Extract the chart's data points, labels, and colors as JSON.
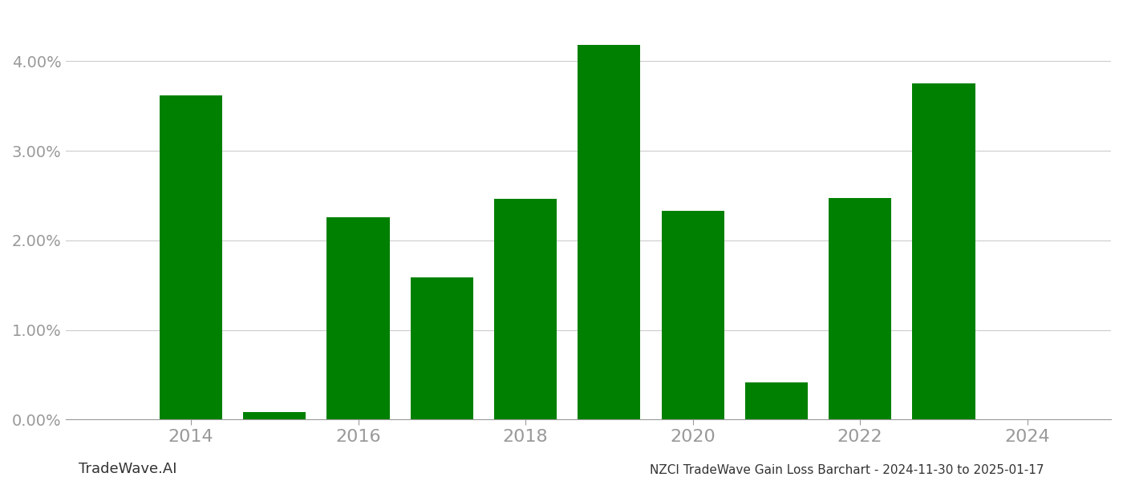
{
  "years": [
    2014,
    2015,
    2016,
    2017,
    2018,
    2019,
    2020,
    2021,
    2022,
    2023
  ],
  "values": [
    3.62,
    0.08,
    2.26,
    1.59,
    2.46,
    4.18,
    2.33,
    0.41,
    2.47,
    3.75
  ],
  "bar_color": "#008000",
  "background_color": "#ffffff",
  "grid_color": "#cccccc",
  "axis_color": "#999999",
  "ylabel_values": [
    0.0,
    1.0,
    2.0,
    3.0,
    4.0
  ],
  "xlabel_ticks": [
    2014,
    2016,
    2018,
    2020,
    2022,
    2024
  ],
  "xlim": [
    2012.5,
    2025.0
  ],
  "ylim": [
    0.0,
    4.55
  ],
  "footer_left": "TradeWave.AI",
  "footer_right": "NZCI TradeWave Gain Loss Barchart - 2024-11-30 to 2025-01-17"
}
